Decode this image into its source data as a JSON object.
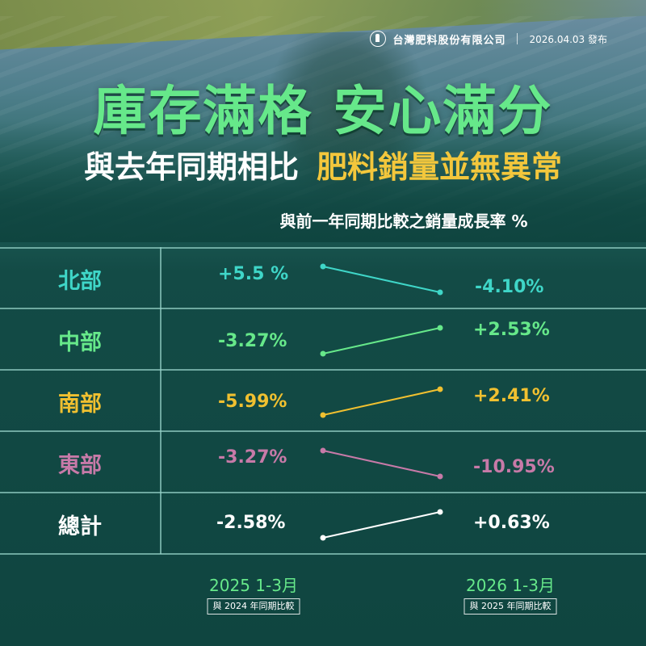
{
  "header": {
    "company": "台灣肥料股份有限公司",
    "date": "2026.04.03 發布",
    "title": "庫存滿格 安心滿分",
    "subtitle_white": "與去年同期相比",
    "subtitle_yellow": "肥料銷量並無異常"
  },
  "colors": {
    "north": "#3fd6c8",
    "central": "#66e88a",
    "south": "#f0c030",
    "east": "#c77aa8",
    "total": "#ffffff"
  },
  "chart_data": {
    "type": "line",
    "title": "與前一年同期比較之銷量成長率 %",
    "x": [
      "2025 1-3月",
      "2026 1-3月"
    ],
    "x_notes": [
      "與 2024 年同期比較",
      "與 2025 年同期比較"
    ],
    "series": [
      {
        "name": "北部",
        "values": [
          5.5,
          -4.1
        ],
        "labels": [
          "+5.5 %",
          "-4.10%"
        ]
      },
      {
        "name": "中部",
        "values": [
          -3.27,
          2.53
        ],
        "labels": [
          "-3.27%",
          "+2.53%"
        ]
      },
      {
        "name": "南部",
        "values": [
          -5.99,
          2.41
        ],
        "labels": [
          "-5.99%",
          "+2.41%"
        ]
      },
      {
        "name": "東部",
        "values": [
          -3.27,
          -10.95
        ],
        "labels": [
          "-3.27%",
          "-10.95%"
        ]
      },
      {
        "name": "總計",
        "values": [
          -2.58,
          0.63
        ],
        "labels": [
          "-2.58%",
          "+0.63%"
        ]
      }
    ]
  }
}
